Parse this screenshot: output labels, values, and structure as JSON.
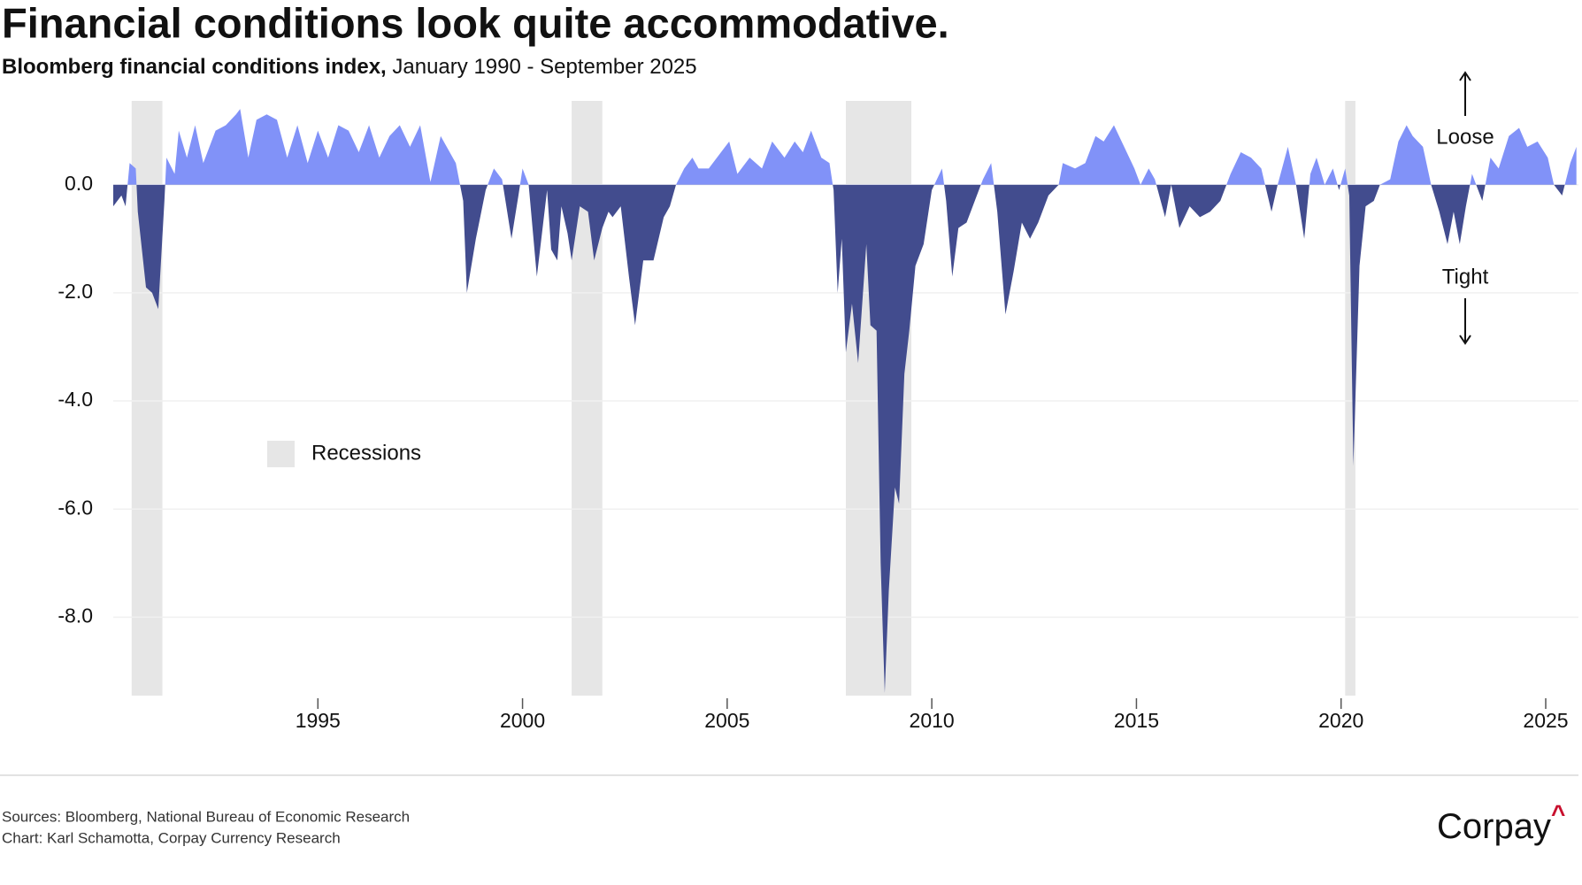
{
  "chart_data": {
    "type": "area",
    "title": "Financial conditions look quite accommodative.",
    "subtitle_bold": "Bloomberg financial conditions index,",
    "subtitle": "January 1990 - September 2025",
    "annotations": {
      "loose": "Loose",
      "tight": "Tight"
    },
    "legend_label": "Recessions",
    "recession_color": "#e6e6e6",
    "recessions": [
      [
        1990.45,
        1991.2
      ],
      [
        2001.2,
        2001.95
      ],
      [
        2007.9,
        2009.5
      ],
      [
        2020.1,
        2020.35
      ]
    ],
    "colors": {
      "above": "#8192f8",
      "below": "#424c8e"
    },
    "x": [
      1990.0,
      1990.2,
      1990.3,
      1990.4,
      1990.55,
      1990.6,
      1990.8,
      1990.95,
      1991.1,
      1991.25,
      1991.3,
      1991.5,
      1991.6,
      1991.8,
      1992.0,
      1992.2,
      1992.5,
      1992.75,
      1993.0,
      1993.1,
      1993.3,
      1993.5,
      1993.75,
      1994.0,
      1994.25,
      1994.5,
      1994.75,
      1995.0,
      1995.25,
      1995.5,
      1995.75,
      1996.0,
      1996.25,
      1996.5,
      1996.75,
      1997.0,
      1997.25,
      1997.5,
      1997.75,
      1998.0,
      1998.37,
      1998.55,
      1998.64,
      1998.86,
      1999.1,
      1999.3,
      1999.5,
      1999.73,
      1999.9,
      2000.0,
      2000.15,
      2000.35,
      2000.6,
      2000.7,
      2000.85,
      2000.95,
      2001.1,
      2001.2,
      2001.4,
      2001.6,
      2001.75,
      2001.95,
      2002.1,
      2002.2,
      2002.4,
      2002.6,
      2002.75,
      2002.95,
      2003.2,
      2003.45,
      2003.6,
      2003.75,
      2003.95,
      2004.15,
      2004.3,
      2004.55,
      2004.85,
      2005.05,
      2005.25,
      2005.55,
      2005.85,
      2006.1,
      2006.4,
      2006.65,
      2006.85,
      2007.05,
      2007.3,
      2007.5,
      2007.6,
      2007.7,
      2007.8,
      2007.9,
      2008.05,
      2008.2,
      2008.4,
      2008.5,
      2008.65,
      2008.75,
      2008.85,
      2008.95,
      2009.1,
      2009.2,
      2009.33,
      2009.45,
      2009.6,
      2009.8,
      2010.0,
      2010.25,
      2010.35,
      2010.5,
      2010.65,
      2010.85,
      2011.05,
      2011.25,
      2011.45,
      2011.6,
      2011.8,
      2012.0,
      2012.2,
      2012.4,
      2012.6,
      2012.85,
      2013.1,
      2013.2,
      2013.5,
      2013.75,
      2014.0,
      2014.2,
      2014.45,
      2014.7,
      2014.95,
      2015.1,
      2015.3,
      2015.45,
      2015.7,
      2015.85,
      2016.05,
      2016.3,
      2016.55,
      2016.8,
      2017.05,
      2017.3,
      2017.55,
      2017.8,
      2018.05,
      2018.3,
      2018.45,
      2018.7,
      2018.9,
      2019.1,
      2019.25,
      2019.4,
      2019.6,
      2019.8,
      2019.95,
      2020.1,
      2020.2,
      2020.3,
      2020.45,
      2020.6,
      2020.8,
      2020.95,
      2021.2,
      2021.4,
      2021.6,
      2021.75,
      2022.0,
      2022.2,
      2022.4,
      2022.6,
      2022.75,
      2022.9,
      2023.05,
      2023.2,
      2023.3,
      2023.45,
      2023.65,
      2023.85,
      2024.1,
      2024.35,
      2024.55,
      2024.8,
      2025.05,
      2025.2,
      2025.4,
      2025.6,
      2025.75
    ],
    "values": [
      -0.4,
      -0.2,
      -0.4,
      0.4,
      0.3,
      -0.5,
      -1.9,
      -2.0,
      -2.3,
      -0.3,
      0.5,
      0.2,
      1.0,
      0.5,
      1.1,
      0.4,
      1.0,
      1.1,
      1.3,
      1.4,
      0.5,
      1.2,
      1.3,
      1.2,
      0.5,
      1.1,
      0.4,
      1.0,
      0.5,
      1.1,
      1.0,
      0.6,
      1.1,
      0.5,
      0.9,
      1.1,
      0.7,
      1.1,
      0.05,
      0.9,
      0.4,
      -0.3,
      -2.0,
      -1.0,
      -0.1,
      0.3,
      0.1,
      -1.0,
      -0.2,
      0.3,
      0.0,
      -1.7,
      -0.1,
      -1.2,
      -1.4,
      -0.4,
      -0.9,
      -1.4,
      -0.4,
      -0.5,
      -1.4,
      -0.8,
      -0.5,
      -0.6,
      -0.4,
      -1.7,
      -2.6,
      -1.4,
      -1.4,
      -0.6,
      -0.4,
      0.0,
      0.3,
      0.5,
      0.3,
      0.3,
      0.6,
      0.8,
      0.2,
      0.5,
      0.3,
      0.8,
      0.5,
      0.8,
      0.6,
      1.0,
      0.5,
      0.4,
      -0.1,
      -2.0,
      -1.0,
      -3.1,
      -2.2,
      -3.3,
      -1.1,
      -2.6,
      -2.7,
      -7.0,
      -9.4,
      -7.5,
      -5.6,
      -5.9,
      -3.5,
      -2.7,
      -1.5,
      -1.1,
      -0.1,
      0.3,
      -0.3,
      -1.7,
      -0.8,
      -0.7,
      -0.3,
      0.1,
      0.4,
      -0.5,
      -2.4,
      -1.6,
      -0.7,
      -1.0,
      -0.7,
      -0.2,
      0.0,
      0.4,
      0.3,
      0.4,
      0.9,
      0.8,
      1.1,
      0.7,
      0.3,
      0.0,
      0.3,
      0.1,
      -0.6,
      0.0,
      -0.8,
      -0.4,
      -0.6,
      -0.5,
      -0.3,
      0.2,
      0.6,
      0.5,
      0.3,
      -0.5,
      0.0,
      0.7,
      0.0,
      -1.0,
      0.2,
      0.5,
      0.0,
      0.3,
      -0.1,
      0.3,
      -0.2,
      -5.2,
      -1.5,
      -0.4,
      -0.3,
      0.0,
      0.1,
      0.8,
      1.1,
      0.9,
      0.7,
      0.0,
      -0.5,
      -1.1,
      -0.5,
      -1.1,
      -0.4,
      0.2,
      0.0,
      -0.3,
      0.5,
      0.3,
      0.9,
      1.05,
      0.7,
      0.8,
      0.5,
      0.0,
      -0.2,
      0.4,
      0.7
    ],
    "xlim": [
      1990,
      2025.8
    ],
    "ylim": [
      -9.45,
      1.55
    ],
    "xticks": [
      1995,
      2000,
      2005,
      2010,
      2015,
      2020,
      2025
    ],
    "yticks": [
      {
        "value": 0,
        "label": "0.0"
      },
      {
        "value": -2,
        "label": "-2.0"
      },
      {
        "value": -4,
        "label": "-4.0"
      },
      {
        "value": -6,
        "label": "-6.0"
      },
      {
        "value": -8,
        "label": "-8.0"
      }
    ],
    "grid": true,
    "sources": [
      "Sources: Bloomberg, National Bureau of Economic Research",
      "Chart: Karl Schamotta, Corpay Currency Research"
    ],
    "logo": {
      "text": "Corpay",
      "mark": "^"
    }
  }
}
